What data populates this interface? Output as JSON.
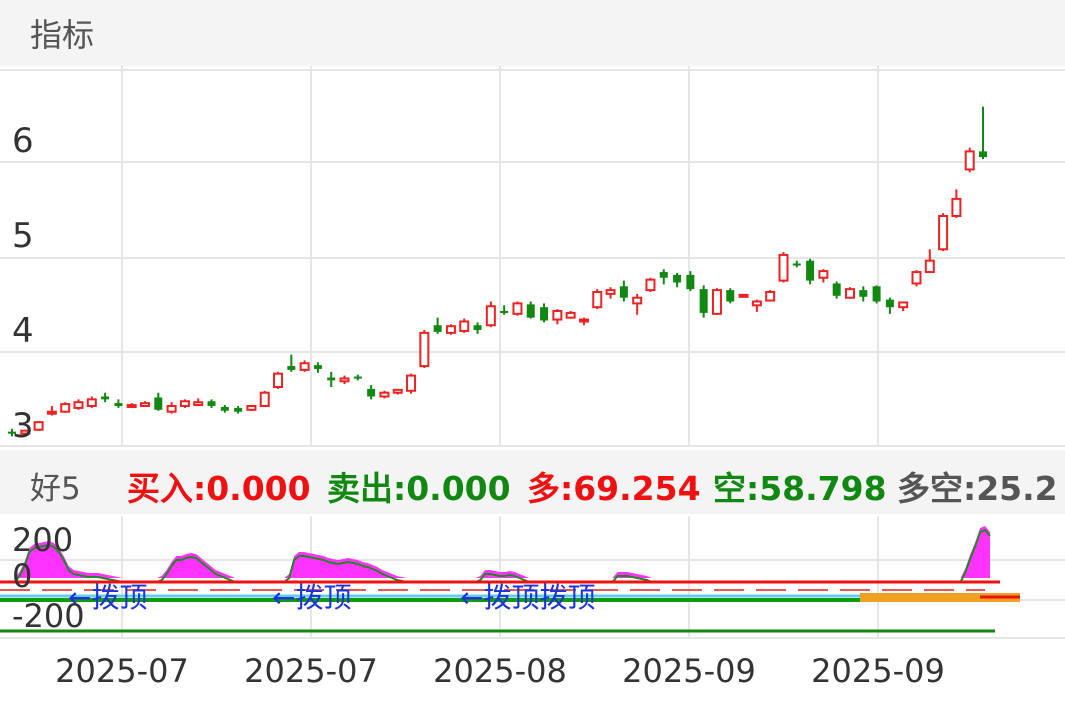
{
  "header": {
    "title": "指标"
  },
  "indicator": {
    "name": "好5",
    "buy": "买入:0.000",
    "sell": "卖出:0.000",
    "long": "多:69.254",
    "short": "空:58.798",
    "longshort": "多空:25.2",
    "colors": {
      "buy": "#ee1111",
      "sell": "#118811",
      "long": "#ee1111",
      "short": "#118811",
      "longshort": "#555555"
    }
  },
  "chart_data": [
    {
      "type": "candlestick",
      "title": "",
      "y_ticks": [
        3,
        4,
        5,
        6
      ],
      "ylim": [
        2.85,
        6.75
      ],
      "x_ticks": [
        "2025-07",
        "2025-07",
        "2025-08",
        "2025-09",
        "2025-09"
      ],
      "up_color": "#ee2222",
      "down_color": "#118811",
      "grid": true,
      "candles": [
        [
          2.93,
          2.96,
          2.88,
          2.91
        ],
        [
          2.91,
          2.95,
          2.9,
          2.94
        ],
        [
          2.95,
          3.04,
          2.94,
          3.03
        ],
        [
          3.12,
          3.2,
          3.1,
          3.14
        ],
        [
          3.14,
          3.24,
          3.13,
          3.22
        ],
        [
          3.18,
          3.27,
          3.16,
          3.24
        ],
        [
          3.2,
          3.3,
          3.18,
          3.27
        ],
        [
          3.3,
          3.34,
          3.24,
          3.27
        ],
        [
          3.23,
          3.27,
          3.18,
          3.2
        ],
        [
          3.2,
          3.23,
          3.18,
          3.21
        ],
        [
          3.2,
          3.25,
          3.19,
          3.23
        ],
        [
          3.29,
          3.34,
          3.15,
          3.16
        ],
        [
          3.14,
          3.24,
          3.12,
          3.2
        ],
        [
          3.2,
          3.27,
          3.18,
          3.25
        ],
        [
          3.21,
          3.28,
          3.2,
          3.24
        ],
        [
          3.25,
          3.27,
          3.18,
          3.2
        ],
        [
          3.19,
          3.21,
          3.13,
          3.15
        ],
        [
          3.18,
          3.2,
          3.12,
          3.14
        ],
        [
          3.16,
          3.21,
          3.15,
          3.2
        ],
        [
          3.2,
          3.36,
          3.19,
          3.34
        ],
        [
          3.4,
          3.56,
          3.38,
          3.54
        ],
        [
          3.62,
          3.74,
          3.56,
          3.58
        ],
        [
          3.58,
          3.68,
          3.56,
          3.65
        ],
        [
          3.63,
          3.66,
          3.55,
          3.59
        ],
        [
          3.5,
          3.56,
          3.4,
          3.47
        ],
        [
          3.46,
          3.52,
          3.43,
          3.49
        ],
        [
          3.51,
          3.53,
          3.47,
          3.5
        ],
        [
          3.38,
          3.42,
          3.27,
          3.3
        ],
        [
          3.3,
          3.36,
          3.28,
          3.34
        ],
        [
          3.34,
          3.38,
          3.32,
          3.37
        ],
        [
          3.36,
          3.54,
          3.33,
          3.52
        ],
        [
          3.62,
          4.0,
          3.6,
          3.97
        ],
        [
          4.05,
          4.13,
          3.96,
          3.98
        ],
        [
          3.97,
          4.06,
          3.95,
          4.04
        ],
        [
          3.99,
          4.12,
          3.97,
          4.09
        ],
        [
          4.05,
          4.08,
          3.96,
          4.0
        ],
        [
          4.05,
          4.3,
          4.03,
          4.25
        ],
        [
          4.2,
          4.26,
          4.16,
          4.18
        ],
        [
          4.17,
          4.3,
          4.15,
          4.28
        ],
        [
          4.27,
          4.3,
          4.12,
          4.13
        ],
        [
          4.24,
          4.28,
          4.08,
          4.1
        ],
        [
          4.11,
          4.22,
          4.06,
          4.2
        ],
        [
          4.13,
          4.2,
          4.12,
          4.18
        ],
        [
          4.09,
          4.13,
          4.05,
          4.11
        ],
        [
          4.24,
          4.43,
          4.22,
          4.4
        ],
        [
          4.38,
          4.45,
          4.33,
          4.42
        ],
        [
          4.46,
          4.52,
          4.3,
          4.34
        ],
        [
          4.28,
          4.38,
          4.16,
          4.34
        ],
        [
          4.42,
          4.55,
          4.4,
          4.53
        ],
        [
          4.61,
          4.64,
          4.48,
          4.55
        ],
        [
          4.58,
          4.6,
          4.45,
          4.5
        ],
        [
          4.58,
          4.62,
          4.41,
          4.43
        ],
        [
          4.43,
          4.47,
          4.13,
          4.18
        ],
        [
          4.17,
          4.44,
          4.16,
          4.42
        ],
        [
          4.42,
          4.44,
          4.28,
          4.3
        ],
        [
          4.35,
          4.38,
          4.34,
          4.37
        ],
        [
          4.26,
          4.32,
          4.19,
          4.3
        ],
        [
          4.31,
          4.42,
          4.3,
          4.4
        ],
        [
          4.52,
          4.82,
          4.5,
          4.79
        ],
        [
          4.7,
          4.73,
          4.66,
          4.68
        ],
        [
          4.73,
          4.75,
          4.48,
          4.52
        ],
        [
          4.55,
          4.64,
          4.5,
          4.62
        ],
        [
          4.49,
          4.51,
          4.33,
          4.36
        ],
        [
          4.34,
          4.45,
          4.33,
          4.43
        ],
        [
          4.42,
          4.46,
          4.3,
          4.35
        ],
        [
          4.46,
          4.47,
          4.28,
          4.3
        ],
        [
          4.32,
          4.34,
          4.17,
          4.24
        ],
        [
          4.24,
          4.3,
          4.2,
          4.29
        ],
        [
          4.49,
          4.63,
          4.46,
          4.61
        ],
        [
          4.61,
          4.85,
          4.6,
          4.73
        ],
        [
          4.85,
          5.23,
          4.83,
          5.2
        ],
        [
          5.2,
          5.48,
          5.18,
          5.38
        ],
        [
          5.69,
          5.92,
          5.66,
          5.88
        ],
        [
          5.88,
          6.35,
          5.8,
          5.82
        ]
      ]
    },
    {
      "type": "area",
      "title": "",
      "y_ticks": [
        200,
        0,
        -200
      ],
      "series": [
        {
          "name": "",
          "color": "#ff33ff",
          "values": [
            0,
            0,
            0,
            0,
            30,
            80,
            150,
            170,
            175,
            180,
            185,
            175,
            150,
            110,
            60,
            40,
            35,
            30,
            25,
            25,
            25,
            20,
            15,
            10,
            5,
            0,
            0,
            0,
            0,
            0,
            0,
            0,
            0,
            10,
            40,
            80,
            110,
            110,
            120,
            125,
            120,
            100,
            80,
            60,
            40,
            30,
            20,
            10,
            0,
            0,
            0,
            0,
            0,
            0,
            0,
            0,
            0,
            0,
            0,
            20,
            110,
            130,
            130,
            125,
            120,
            115,
            110,
            100,
            95,
            90,
            95,
            100,
            95,
            90,
            80,
            75,
            65,
            55,
            40,
            30,
            20,
            10,
            5,
            0,
            0,
            0,
            0,
            0,
            0,
            0,
            0,
            0,
            0,
            0,
            0,
            0,
            0,
            0,
            10,
            40,
            40,
            35,
            30,
            30,
            35,
            30,
            20,
            10,
            0,
            0,
            0,
            0,
            0,
            0,
            0,
            0,
            0,
            0,
            0,
            0,
            0,
            0,
            0,
            0,
            0,
            0,
            30,
            30,
            30,
            25,
            20,
            15,
            10,
            0,
            0,
            0,
            0,
            0,
            0,
            0,
            0,
            0,
            0,
            0,
            0,
            0,
            0,
            0,
            0,
            0,
            0,
            0,
            0,
            0,
            0,
            0,
            0,
            0,
            0,
            0,
            0,
            0,
            0,
            0,
            0,
            0,
            0,
            0,
            0,
            0,
            0,
            0,
            0,
            0,
            0,
            0,
            0,
            0,
            0,
            0,
            0,
            0,
            0,
            0,
            0,
            0,
            0,
            0,
            0,
            0,
            0,
            0,
            0,
            0,
            0,
            0,
            0,
            50,
            120,
            180,
            250,
            260,
            230
          ]
        }
      ],
      "annotations": [
        "←拨顶",
        "←拨顶",
        "←拨顶拨顶"
      ]
    }
  ]
}
